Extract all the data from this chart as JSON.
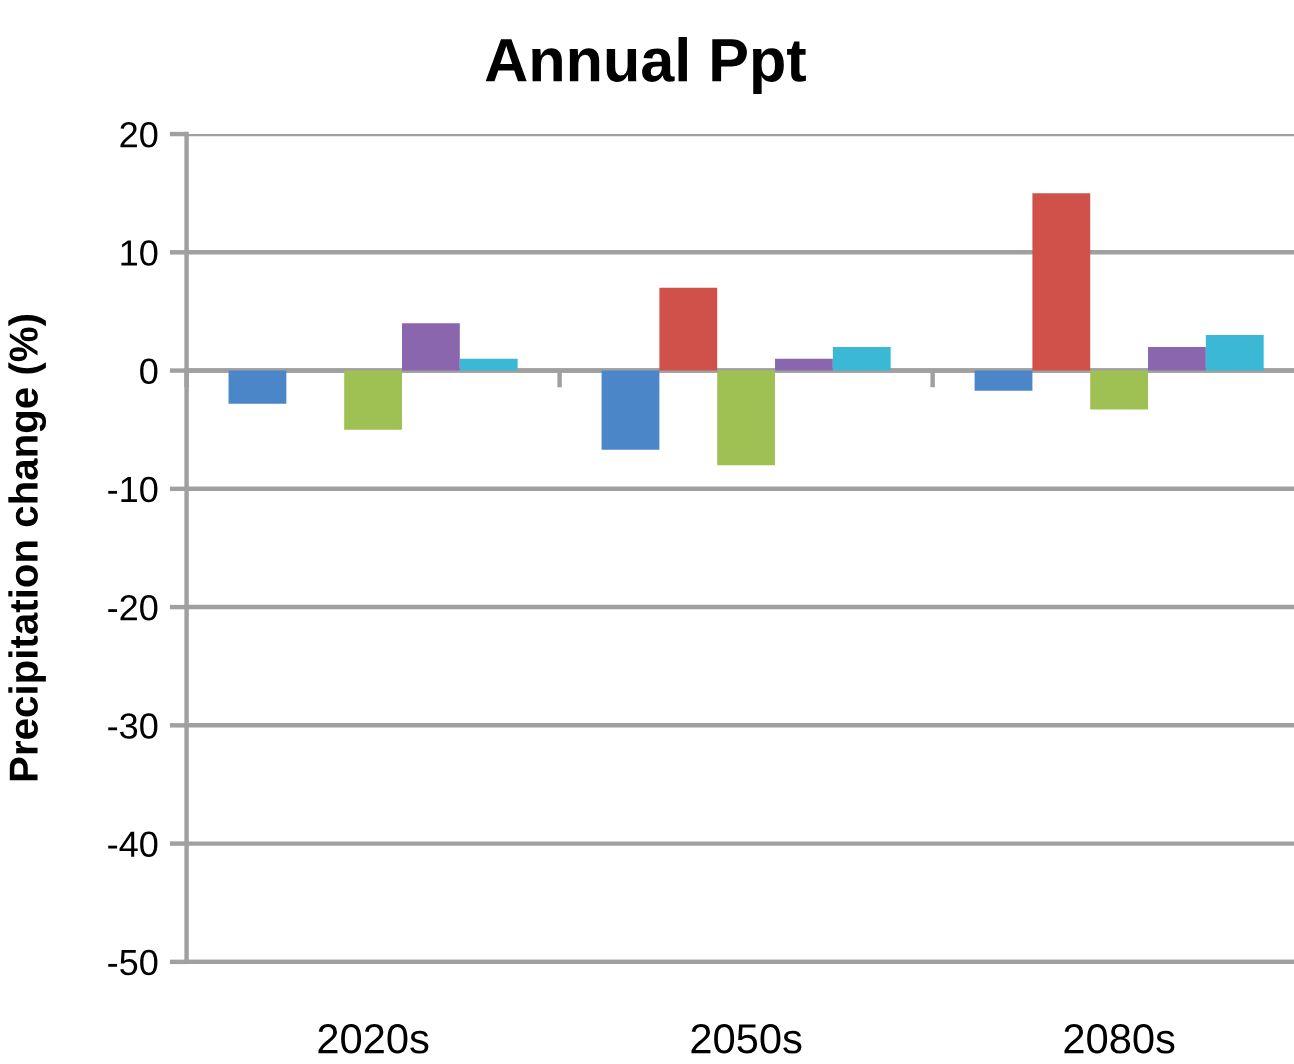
{
  "chart_data": {
    "type": "bar",
    "title": "Annual Ppt",
    "ylabel": "Precipitation change (%)",
    "categories": [
      "2020s",
      "2050s",
      "2080s"
    ],
    "series": [
      {
        "color": "#4a86c8",
        "values": [
          -2.8,
          -6.7,
          -1.7
        ]
      },
      {
        "color": "#d0504a",
        "values": [
          null,
          7,
          15
        ]
      },
      {
        "color": "#9fc052",
        "values": [
          -5,
          -8,
          -3.3
        ]
      },
      {
        "color": "#8a66ae",
        "values": [
          4,
          1,
          2
        ]
      },
      {
        "color": "#3ab8d6",
        "values": [
          1,
          2,
          3
        ]
      }
    ],
    "ylim": [
      -50,
      20
    ],
    "yticks": [
      -50,
      -40,
      -30,
      -20,
      -10,
      0,
      10,
      20
    ],
    "grid": "y"
  }
}
